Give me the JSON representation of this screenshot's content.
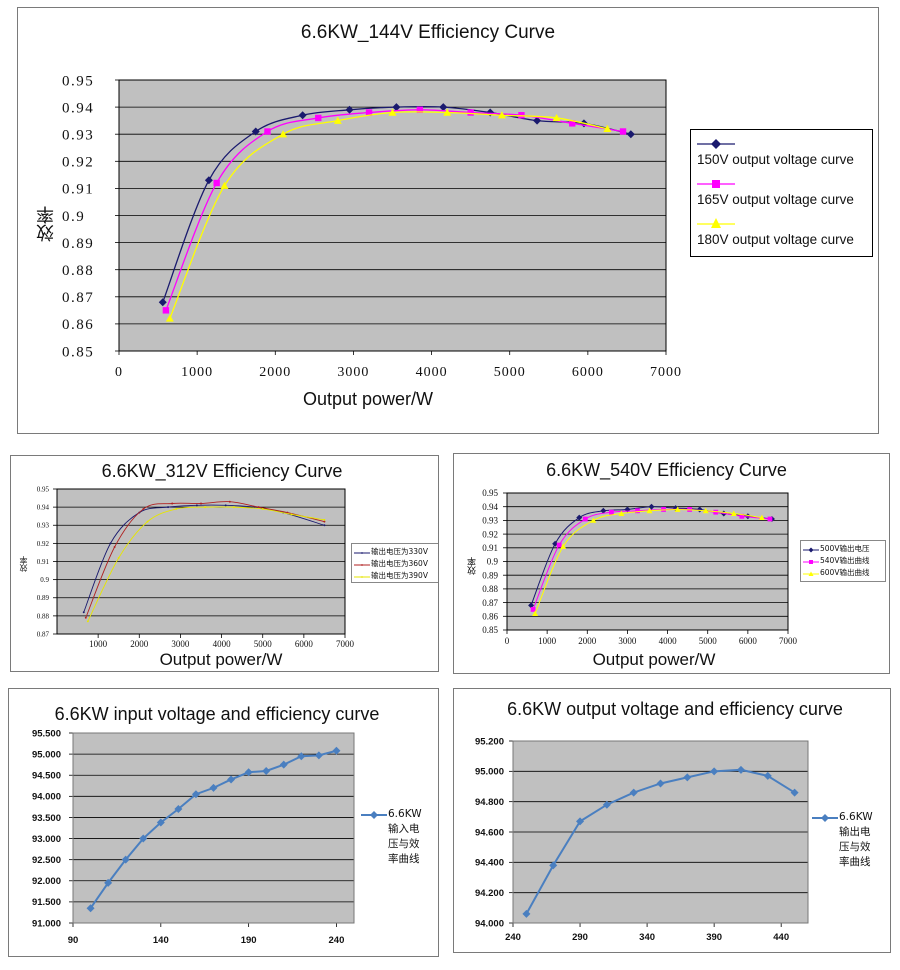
{
  "chart_data": [
    {
      "id": "c1",
      "type": "line",
      "title": "6.6KW_144V Efficiency Curve",
      "xlabel": "Output power/W",
      "ylabel": "效率",
      "xlim": [
        0,
        7000
      ],
      "ylim": [
        0.85,
        0.95
      ],
      "xticks": [
        "0",
        "1000",
        "2000",
        "3000",
        "4000",
        "5000",
        "6000",
        "7000"
      ],
      "yticks": [
        "0.85",
        "0.86",
        "0.87",
        "0.88",
        "0.89",
        "0.9",
        "0.91",
        "0.92",
        "0.93",
        "0.94",
        "0.95"
      ],
      "legend_position": "right",
      "series": [
        {
          "name": "150V output voltage curve",
          "color": "#1a1a6e",
          "marker": "diamond",
          "x": [
            560,
            1150,
            1750,
            2350,
            2950,
            3550,
            4150,
            4750,
            5350,
            5950,
            6550
          ],
          "y": [
            0.868,
            0.913,
            0.931,
            0.937,
            0.939,
            0.94,
            0.94,
            0.938,
            0.935,
            0.934,
            0.93
          ]
        },
        {
          "name": "165V output voltage curve",
          "color": "#ff00ff",
          "marker": "square",
          "x": [
            600,
            1250,
            1900,
            2550,
            3200,
            3850,
            4500,
            5150,
            5800,
            6450
          ],
          "y": [
            0.865,
            0.912,
            0.931,
            0.936,
            0.938,
            0.939,
            0.938,
            0.937,
            0.934,
            0.931
          ]
        },
        {
          "name": "180V output voltage curve",
          "color": "#ffff00",
          "marker": "triangle",
          "x": [
            650,
            1350,
            2100,
            2800,
            3500,
            4200,
            4900,
            5600,
            6250
          ],
          "y": [
            0.862,
            0.911,
            0.93,
            0.935,
            0.938,
            0.938,
            0.937,
            0.936,
            0.932
          ]
        }
      ]
    },
    {
      "id": "c2",
      "type": "line",
      "title": "6.6KW_312V Efficiency Curve",
      "xlabel": "Output power/W",
      "ylabel": "效率",
      "xlim": [
        0,
        7000
      ],
      "ylim": [
        0.87,
        0.95
      ],
      "xticks": [
        "1000",
        "2000",
        "3000",
        "4000",
        "5000",
        "6000",
        "7000"
      ],
      "yticks": [
        "0.87",
        "0.88",
        "0.89",
        "0.9",
        "0.91",
        "0.92",
        "0.93",
        "0.94",
        "0.95"
      ],
      "legend_position": "right",
      "series": [
        {
          "name": "输出电压为330V",
          "color": "#1a1a6e",
          "marker": "dot",
          "x": [
            650,
            1300,
            2000,
            2700,
            3400,
            4100,
            4800,
            5500,
            6500
          ],
          "y": [
            0.882,
            0.92,
            0.937,
            0.94,
            0.941,
            0.941,
            0.94,
            0.937,
            0.93
          ]
        },
        {
          "name": "输出电压为360V",
          "color": "#b02020",
          "marker": "dot",
          "x": [
            700,
            1400,
            2100,
            2800,
            3500,
            4200,
            4900,
            5600,
            6500
          ],
          "y": [
            0.879,
            0.918,
            0.939,
            0.942,
            0.942,
            0.943,
            0.94,
            0.937,
            0.932
          ]
        },
        {
          "name": "输出电压为390V",
          "color": "#e6e600",
          "marker": "dot",
          "x": [
            750,
            1500,
            2200,
            2900,
            3600,
            4300,
            5000,
            5700,
            6500
          ],
          "y": [
            0.877,
            0.912,
            0.932,
            0.939,
            0.94,
            0.94,
            0.939,
            0.936,
            0.933
          ]
        }
      ]
    },
    {
      "id": "c3",
      "type": "line",
      "title": "6.6KW_540V Efficiency Curve",
      "xlabel": "Output power/W",
      "ylabel": "效率",
      "xlim": [
        0,
        7000
      ],
      "ylim": [
        0.85,
        0.95
      ],
      "xticks": [
        "0",
        "1000",
        "2000",
        "3000",
        "4000",
        "5000",
        "6000",
        "7000"
      ],
      "yticks": [
        "0.85",
        "0.86",
        "0.87",
        "0.88",
        "0.89",
        "0.9",
        "0.91",
        "0.92",
        "0.93",
        "0.94",
        "0.95"
      ],
      "legend_position": "right",
      "series": [
        {
          "name": "500V输出电压",
          "color": "#1a1a6e",
          "marker": "diamond",
          "x": [
            600,
            1200,
            1800,
            2400,
            3000,
            3600,
            4200,
            4800,
            5400,
            6000,
            6600
          ],
          "y": [
            0.868,
            0.913,
            0.932,
            0.937,
            0.938,
            0.94,
            0.939,
            0.938,
            0.935,
            0.933,
            0.931
          ]
        },
        {
          "name": "540V输出曲线",
          "color": "#ff00ff",
          "marker": "square",
          "x": [
            650,
            1300,
            1950,
            2600,
            3250,
            3900,
            4550,
            5200,
            5850,
            6550
          ],
          "y": [
            0.865,
            0.912,
            0.931,
            0.936,
            0.937,
            0.938,
            0.938,
            0.936,
            0.933,
            0.931
          ]
        },
        {
          "name": "600V输出曲线",
          "color": "#ffff00",
          "marker": "triangle",
          "x": [
            700,
            1400,
            2150,
            2850,
            3550,
            4250,
            4950,
            5650,
            6350
          ],
          "y": [
            0.862,
            0.911,
            0.93,
            0.935,
            0.937,
            0.938,
            0.937,
            0.935,
            0.932
          ]
        }
      ]
    },
    {
      "id": "c4",
      "type": "line",
      "title": "6.6KW input voltage and efficiency curve",
      "xlabel": "",
      "ylabel": "",
      "xlim": [
        90,
        250
      ],
      "ylim": [
        91.0,
        95.5
      ],
      "xticks": [
        "90",
        "140",
        "190",
        "240"
      ],
      "yticks": [
        "91.000",
        "91.500",
        "92.000",
        "92.500",
        "93.000",
        "93.500",
        "94.000",
        "94.500",
        "95.000",
        "95.500"
      ],
      "legend_position": "right",
      "series": [
        {
          "name": "6.6KW输入电压与效率曲线",
          "legend_lines": [
            "6.6KW",
            "输入电",
            "压与效",
            "率曲线"
          ],
          "color": "#4a7fc0",
          "marker": "diamond",
          "x": [
            100,
            110,
            120,
            130,
            140,
            150,
            160,
            170,
            180,
            190,
            200,
            210,
            220,
            230,
            240
          ],
          "y": [
            91.35,
            91.95,
            92.5,
            93.0,
            93.38,
            93.7,
            94.05,
            94.2,
            94.4,
            94.57,
            94.6,
            94.75,
            94.95,
            94.97,
            95.08
          ]
        }
      ]
    },
    {
      "id": "c5",
      "type": "line",
      "title": "6.6KW output voltage and efficiency curve",
      "xlabel": "",
      "ylabel": "",
      "xlim": [
        240,
        460
      ],
      "ylim": [
        94.0,
        95.2
      ],
      "xticks": [
        "240",
        "290",
        "340",
        "390",
        "440"
      ],
      "yticks": [
        "94.000",
        "94.200",
        "94.400",
        "94.600",
        "94.800",
        "95.000",
        "95.200"
      ],
      "legend_position": "right",
      "series": [
        {
          "name": "6.6KW输出电压与效率曲线",
          "legend_lines": [
            "6.6KW",
            "输出电",
            "压与效",
            "率曲线"
          ],
          "color": "#4a7fc0",
          "marker": "diamond",
          "x": [
            250,
            270,
            290,
            310,
            330,
            350,
            370,
            390,
            410,
            430,
            450
          ],
          "y": [
            94.06,
            94.38,
            94.67,
            94.78,
            94.86,
            94.92,
            94.96,
            95.0,
            95.01,
            94.97,
            94.86
          ]
        }
      ]
    }
  ]
}
